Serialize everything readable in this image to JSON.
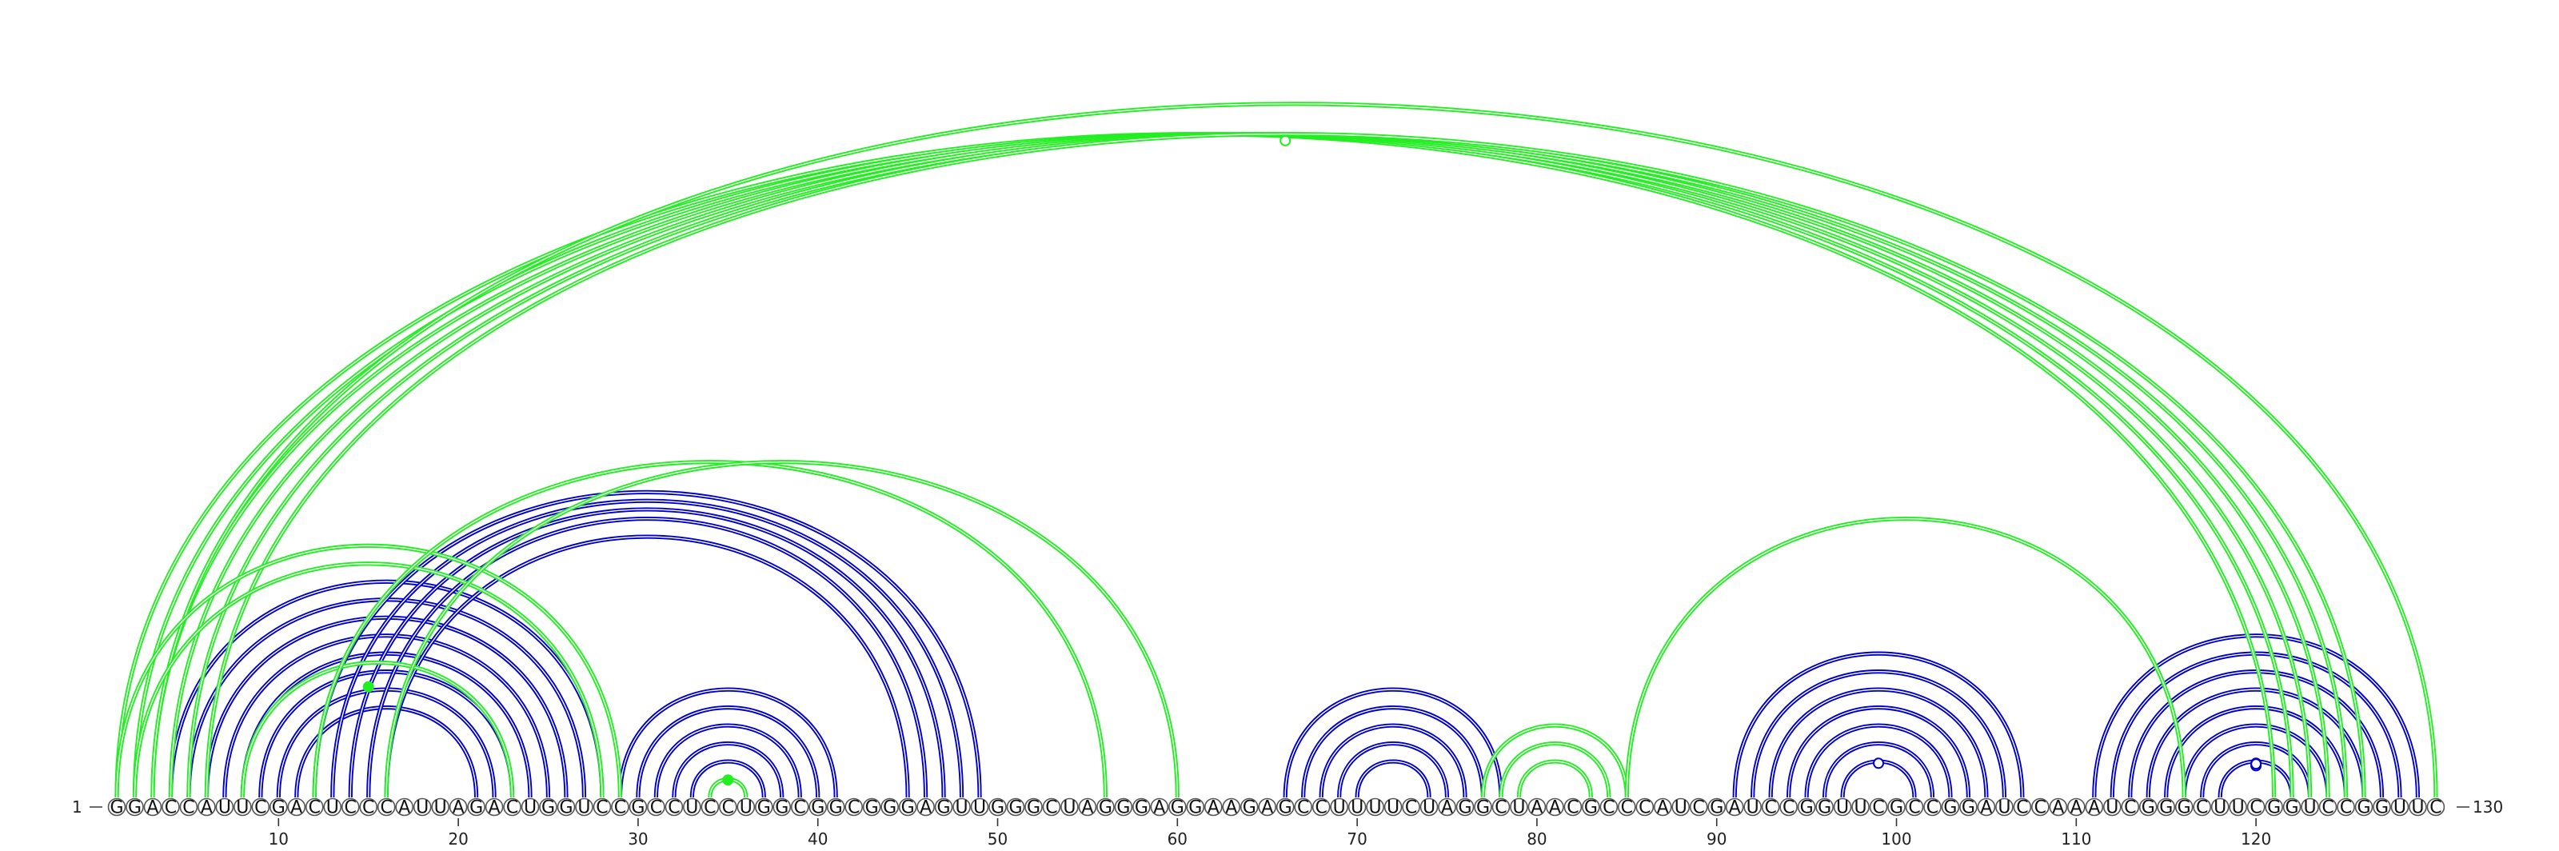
{
  "sequence": "GGACCAUUCGACUCCCAUUAGACUGGUCCGCCUCCUGGCGGCGGGAGUUGGGCUAGGGAGGAAGAGCCUUUUCUAGGCUAACGCCCAUCGAUCCGGUUCGCCGGAUCCAAAUCGGGCUUCGGUCCGGUUC",
  "start_label": "1",
  "end_label": "130",
  "tick_positions": [
    10,
    20,
    30,
    40,
    50,
    60,
    70,
    80,
    90,
    100,
    110,
    120
  ],
  "colors": {
    "blue": "#0000cc",
    "green": "#22ee22"
  },
  "arcs": [
    {
      "i": 4,
      "j": 28,
      "color": "blue"
    },
    {
      "i": 5,
      "j": 27,
      "color": "blue"
    },
    {
      "i": 6,
      "j": 26,
      "color": "blue"
    },
    {
      "i": 7,
      "j": 25,
      "color": "blue"
    },
    {
      "i": 8,
      "j": 24,
      "color": "blue"
    },
    {
      "i": 9,
      "j": 23,
      "color": "blue"
    },
    {
      "i": 10,
      "j": 22,
      "color": "blue"
    },
    {
      "i": 11,
      "j": 21,
      "color": "blue"
    },
    {
      "i": 12,
      "j": 49,
      "color": "blue"
    },
    {
      "i": 13,
      "j": 48,
      "color": "blue"
    },
    {
      "i": 14,
      "j": 47,
      "color": "blue"
    },
    {
      "i": 15,
      "j": 46,
      "color": "blue"
    },
    {
      "i": 16,
      "j": 45,
      "color": "blue"
    },
    {
      "i": 29,
      "j": 41,
      "color": "blue"
    },
    {
      "i": 30,
      "j": 40,
      "color": "blue"
    },
    {
      "i": 31,
      "j": 39,
      "color": "blue"
    },
    {
      "i": 32,
      "j": 38,
      "color": "blue"
    },
    {
      "i": 33,
      "j": 37,
      "color": "blue"
    },
    {
      "i": 66,
      "j": 78,
      "color": "blue"
    },
    {
      "i": 67,
      "j": 77,
      "color": "blue"
    },
    {
      "i": 68,
      "j": 76,
      "color": "blue"
    },
    {
      "i": 69,
      "j": 75,
      "color": "blue"
    },
    {
      "i": 70,
      "j": 74,
      "color": "blue"
    },
    {
      "i": 91,
      "j": 107,
      "color": "blue"
    },
    {
      "i": 92,
      "j": 106,
      "color": "blue"
    },
    {
      "i": 93,
      "j": 105,
      "color": "blue"
    },
    {
      "i": 94,
      "j": 104,
      "color": "blue"
    },
    {
      "i": 95,
      "j": 103,
      "color": "blue"
    },
    {
      "i": 96,
      "j": 102,
      "color": "blue"
    },
    {
      "i": 97,
      "j": 101,
      "color": "blue"
    },
    {
      "i": 111,
      "j": 129,
      "color": "blue"
    },
    {
      "i": 112,
      "j": 128,
      "color": "blue"
    },
    {
      "i": 113,
      "j": 127,
      "color": "blue"
    },
    {
      "i": 114,
      "j": 126,
      "color": "blue"
    },
    {
      "i": 115,
      "j": 125,
      "color": "blue"
    },
    {
      "i": 116,
      "j": 124,
      "color": "blue"
    },
    {
      "i": 117,
      "j": 123,
      "color": "blue"
    },
    {
      "i": 118,
      "j": 122,
      "color": "blue"
    },
    {
      "i": 1,
      "j": 121,
      "color": "green"
    },
    {
      "i": 2,
      "j": 122,
      "color": "green"
    },
    {
      "i": 3,
      "j": 123,
      "color": "green"
    },
    {
      "i": 4,
      "j": 124,
      "color": "green"
    },
    {
      "i": 5,
      "j": 125,
      "color": "green"
    },
    {
      "i": 6,
      "j": 126,
      "color": "green"
    },
    {
      "i": 3,
      "j": 130,
      "color": "green"
    },
    {
      "i": 1,
      "j": 29,
      "color": "green"
    },
    {
      "i": 2,
      "j": 28,
      "color": "green"
    },
    {
      "i": 8,
      "j": 23,
      "color": "green"
    },
    {
      "i": 12,
      "j": 56,
      "color": "green"
    },
    {
      "i": 16,
      "j": 60,
      "color": "green"
    },
    {
      "i": 34,
      "j": 36,
      "color": "green"
    },
    {
      "i": 77,
      "j": 85,
      "color": "green"
    },
    {
      "i": 78,
      "j": 84,
      "color": "green"
    },
    {
      "i": 79,
      "j": 83,
      "color": "green"
    },
    {
      "i": 85,
      "j": 116,
      "color": "green"
    }
  ],
  "markers": [
    {
      "pos": 66,
      "level": 0.99,
      "color": "green",
      "filled": false
    },
    {
      "pos": 35,
      "level": 0.97,
      "color": "green",
      "filled": true
    },
    {
      "pos": 15,
      "level": 0.82,
      "color": "green",
      "filled": true
    },
    {
      "pos": 99,
      "level": 0.95,
      "color": "blue",
      "filled": false
    },
    {
      "pos": 120,
      "level": 0.95,
      "color": "blue",
      "filled": false
    },
    {
      "pos": 120,
      "level": 0.88,
      "color": "blue",
      "filled": false
    },
    {
      "pos": 120,
      "level": 0.93,
      "color": "blue",
      "filled": false
    }
  ]
}
